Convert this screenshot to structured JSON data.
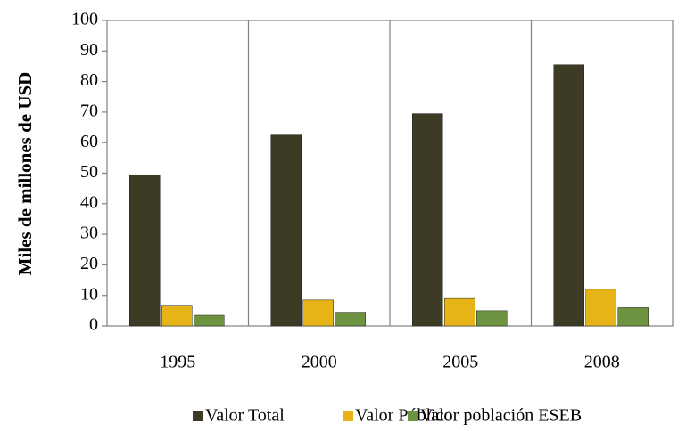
{
  "chart_data": {
    "type": "bar",
    "y_label": "Miles de millones de USD",
    "categories": [
      "1995",
      "2000",
      "2005",
      "2008"
    ],
    "series": [
      {
        "name": "Valor Total",
        "color": "#3d3a26",
        "values": [
          49.5,
          62.5,
          69.5,
          85.5
        ]
      },
      {
        "name": "Valor Público",
        "color": "#e6b417",
        "values": [
          6.5,
          8.5,
          9,
          12
        ]
      },
      {
        "name": "Valor población ESEB",
        "color": "#6e9340",
        "values": [
          3.5,
          4.5,
          5,
          6
        ]
      }
    ],
    "ylim": [
      0,
      100
    ],
    "yticks": [
      0,
      10,
      20,
      30,
      40,
      50,
      60,
      70,
      80,
      90,
      100
    ],
    "legend": "bottom"
  }
}
